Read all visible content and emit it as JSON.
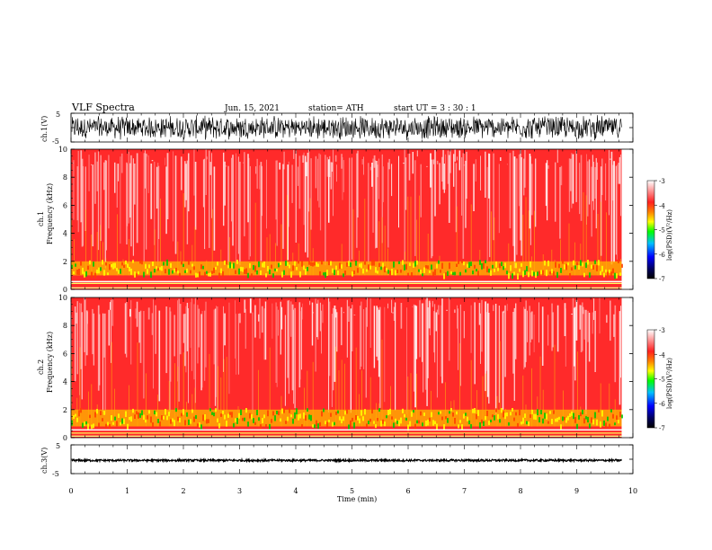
{
  "header": {
    "title": "VLF  Spectra",
    "date": "Jun. 15, 2021",
    "station": "station= ATH",
    "start": "start  UT  =    3  : 30 : 1"
  },
  "chart_data": [
    {
      "type": "line",
      "panel": "ch1-waveform",
      "ylabel": "ch.1(V)",
      "ylim": [
        -5,
        5
      ],
      "yticks": [
        "5",
        "-5"
      ],
      "xlim": [
        0,
        10
      ],
      "data_extent_min": 9.8,
      "amplitude_envelope": [
        -4.5,
        4.5
      ]
    },
    {
      "type": "heatmap",
      "panel": "ch1-spectrogram",
      "ylabel_top": "ch.1",
      "ylabel": "Frequency  (kHz)",
      "ylim": [
        0,
        10
      ],
      "yticks": [
        "0",
        "2",
        "4",
        "6",
        "8",
        "10"
      ],
      "xlim": [
        0,
        10
      ],
      "data_extent_min": 9.8,
      "colorbar": {
        "label": "log(PSD)(V²/Hz)",
        "range": [
          -7,
          -3
        ],
        "ticks": [
          "-3",
          "-4",
          "-5",
          "-6",
          "-7"
        ]
      },
      "features": [
        {
          "band_khz": [
            1.0,
            2.0
          ],
          "level": "high (-5 to -4.5)"
        },
        {
          "band_khz": [
            0.4,
            0.6
          ],
          "level": "line"
        },
        {
          "band_khz": [
            2.0,
            10.0
          ],
          "level": "-4 to -3"
        }
      ]
    },
    {
      "type": "heatmap",
      "panel": "ch2-spectrogram",
      "ylabel_top": "ch.2",
      "ylabel": "Frequency  (kHz)",
      "ylim": [
        0,
        10
      ],
      "yticks": [
        "0",
        "2",
        "4",
        "6",
        "8",
        "10"
      ],
      "xlim": [
        0,
        10
      ],
      "data_extent_min": 9.8,
      "colorbar": {
        "label": "log(PSD)(V²/Hz)",
        "range": [
          -7,
          -3
        ],
        "ticks": [
          "-3",
          "-4",
          "-5",
          "-6",
          "-7"
        ]
      },
      "features": [
        {
          "band_khz": [
            0.8,
            2.0
          ],
          "level": "high (-5 to -4.5)"
        },
        {
          "band_khz": [
            0.3,
            0.6
          ],
          "level": "line"
        },
        {
          "band_khz": [
            2.0,
            10.0
          ],
          "level": "-4 to -3"
        }
      ]
    },
    {
      "type": "line",
      "panel": "ch3-waveform",
      "ylabel": "ch.3(V)",
      "ylim": [
        -5,
        5
      ],
      "yticks": [
        "5",
        "-5"
      ],
      "xlim": [
        0,
        10
      ],
      "data_extent_min": 9.8,
      "baseline_v": -0.4,
      "xlabel": "Time  (min)",
      "xticks": [
        "0",
        "1",
        "2",
        "3",
        "4",
        "5",
        "6",
        "7",
        "8",
        "9",
        "10"
      ]
    }
  ],
  "colors": {
    "background": "#ffffff",
    "trace": "#000000",
    "spectro_high": "#ff0000",
    "spectro_low": "#ffffff",
    "band_green": "#00c800",
    "band_yellow": "#ffff00"
  }
}
